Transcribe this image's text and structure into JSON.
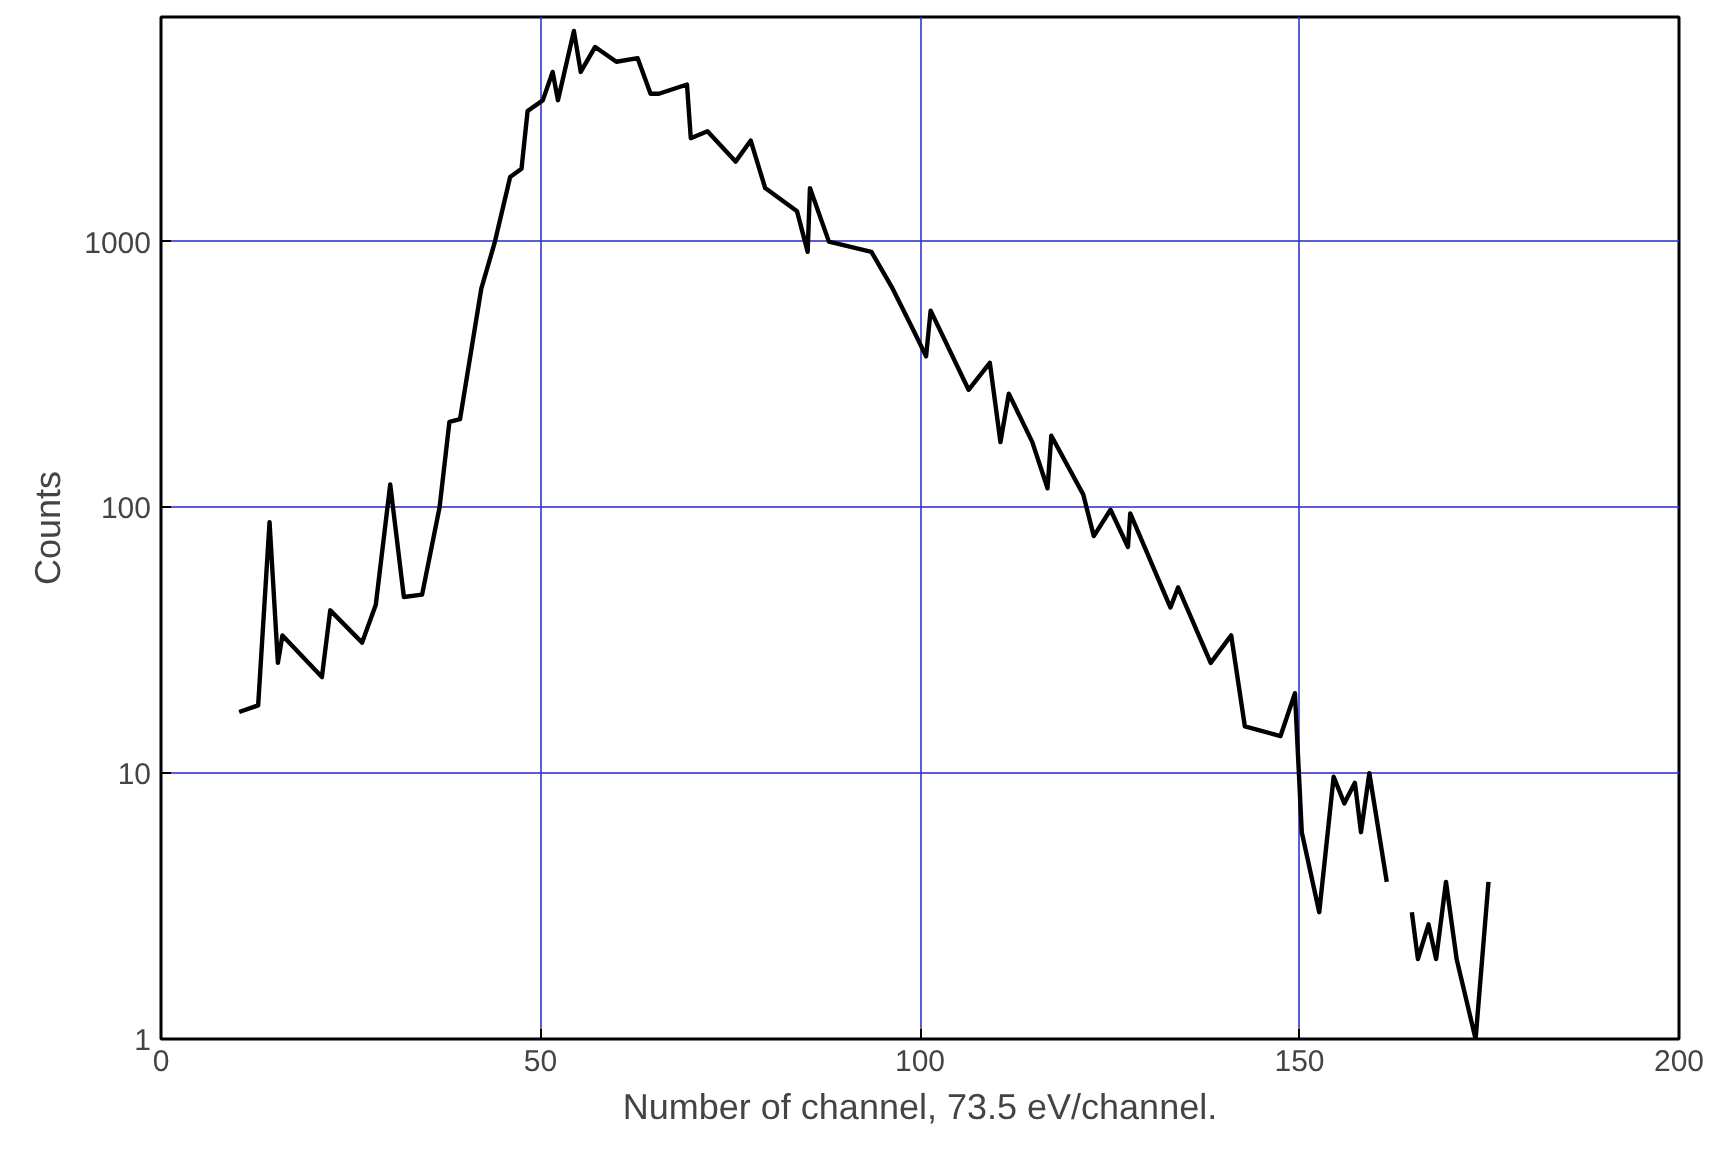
{
  "chart_data": {
    "type": "line",
    "xlabel": "Number of channel, 73.5 eV/channel.",
    "ylabel": "Counts",
    "log": true,
    "grid": true,
    "xlim": [
      0,
      200
    ],
    "xticks": [
      0,
      50,
      100,
      150,
      200
    ],
    "ylim": [
      1,
      7000
    ],
    "yticks": [
      1,
      10,
      100,
      1000
    ],
    "series": [
      {
        "color": "#000000",
        "x": [
          10.3,
          12.8,
          14.3,
          15.4,
          16,
          21.2,
          22.3,
          26.5,
          28.3,
          30.2,
          32,
          34.4,
          36.7,
          38,
          39.4,
          42.2,
          44,
          46,
          47.5,
          48.3,
          50.3,
          51.6,
          52.3,
          54.4,
          55.3,
          57.2,
          60,
          62.8,
          64.5,
          65.6,
          69.3,
          69.8,
          72,
          75.7,
          77.7,
          79.6,
          83.8,
          85.2,
          85.5,
          88,
          93.6,
          96.4,
          99.2,
          100.8,
          101.4,
          106.4,
          109.2,
          110.6,
          111.7,
          114.8,
          116.8,
          117.3,
          121.5,
          122.9,
          125.1,
          127.4,
          127.7,
          133,
          134,
          138.3,
          141,
          142.8,
          147.5,
          149.4,
          150.3,
          152.6,
          154.5,
          155.9,
          157.3,
          158.1,
          159.2,
          161.5,
          163,
          164.8,
          165.6,
          167,
          168,
          169.3,
          170.7,
          173.2,
          174.9
        ],
        "values": [
          17,
          18,
          88,
          26,
          33,
          23,
          41,
          31,
          43,
          122,
          46,
          47,
          100,
          210,
          215,
          665,
          1000,
          1750,
          1880,
          3100,
          3400,
          4350,
          3400,
          6200,
          4350,
          5400,
          4750,
          4900,
          3600,
          3600,
          3900,
          2450,
          2600,
          2000,
          2400,
          1590,
          1300,
          915,
          1590,
          1000,
          915,
          665,
          460,
          370,
          550,
          277,
          350,
          176,
          268,
          176,
          118,
          186,
          112,
          78,
          98,
          71,
          95,
          42,
          50,
          26,
          33,
          15,
          13.8,
          20,
          6,
          3,
          9.7,
          7.7,
          9.2,
          6,
          10,
          3.9,
          null,
          3,
          2,
          2.7,
          2,
          3.9,
          2,
          1,
          3.9
        ]
      }
    ]
  }
}
